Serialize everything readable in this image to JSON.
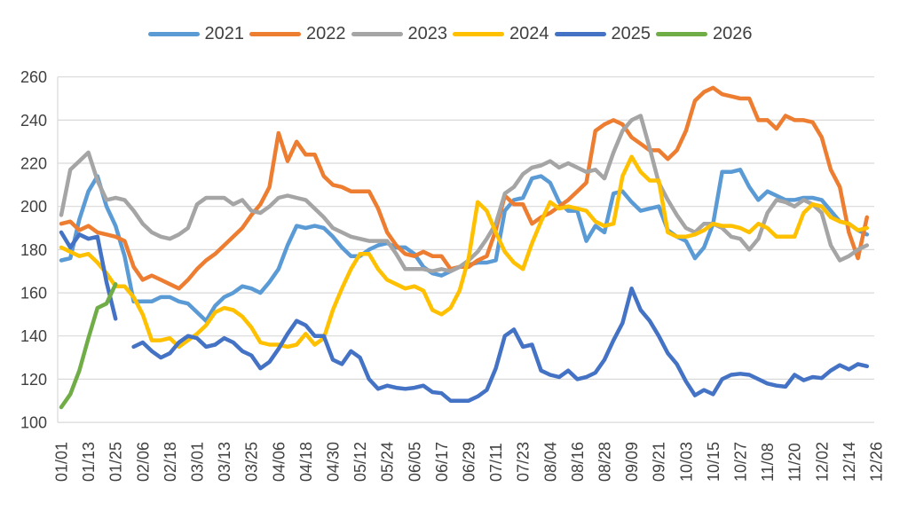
{
  "colors": {
    "background": "#ffffff",
    "grid": "#d9d9d9",
    "axis_text": "#404040",
    "series_2021": "#5B9BD5",
    "series_2022": "#ED7D31",
    "series_2023": "#A5A5A5",
    "series_2024": "#FFC000",
    "series_2025": "#4472C4",
    "series_2026": "#70AD47"
  },
  "legend": {
    "position": "top",
    "items": [
      {
        "label": "2021",
        "color": "#5B9BD5"
      },
      {
        "label": "2022",
        "color": "#ED7D31"
      },
      {
        "label": "2023",
        "color": "#A5A5A5"
      },
      {
        "label": "2024",
        "color": "#FFC000"
      },
      {
        "label": "2025",
        "color": "#4472C4"
      },
      {
        "label": "2026",
        "color": "#70AD47"
      }
    ]
  },
  "chart_data": {
    "type": "line",
    "title": "",
    "xlabel": "",
    "ylabel": "",
    "grid": true,
    "legend_position": "top",
    "ylim": [
      100,
      260
    ],
    "y_ticks": [
      100,
      120,
      140,
      160,
      180,
      200,
      220,
      240,
      260
    ],
    "x_tick_labels": [
      "01/01",
      "01/13",
      "01/25",
      "02/06",
      "02/18",
      "03/01",
      "03/13",
      "03/25",
      "04/06",
      "04/18",
      "04/30",
      "05/12",
      "05/24",
      "06/05",
      "06/17",
      "06/29",
      "07/11",
      "07/23",
      "08/04",
      "08/16",
      "08/28",
      "09/09",
      "09/21",
      "10/03",
      "10/15",
      "10/27",
      "11/08",
      "11/20",
      "12/02",
      "12/14",
      "12/26"
    ],
    "x_tick_days": [
      1,
      13,
      25,
      37,
      49,
      61,
      73,
      85,
      97,
      109,
      121,
      133,
      145,
      157,
      169,
      181,
      193,
      205,
      217,
      229,
      241,
      253,
      265,
      277,
      289,
      301,
      313,
      325,
      337,
      349,
      361
    ],
    "x_unit": "day-of-year (MM/DD)",
    "sample_days": [
      1,
      5,
      9,
      13,
      17,
      21,
      25,
      29,
      33,
      37,
      41,
      45,
      49,
      53,
      57,
      61,
      65,
      69,
      73,
      77,
      81,
      85,
      89,
      93,
      97,
      101,
      105,
      109,
      113,
      117,
      121,
      125,
      129,
      133,
      137,
      141,
      145,
      149,
      153,
      157,
      161,
      165,
      169,
      173,
      177,
      181,
      185,
      189,
      193,
      197,
      201,
      205,
      209,
      213,
      217,
      221,
      225,
      229,
      233,
      237,
      241,
      245,
      249,
      253,
      257,
      261,
      265,
      269,
      273,
      277,
      281,
      285,
      289,
      293,
      297,
      301,
      305,
      309,
      313,
      317,
      321,
      325,
      329,
      333,
      337,
      341,
      345,
      349,
      353,
      357
    ],
    "series": [
      {
        "name": "2021",
        "color": "#5B9BD5",
        "values": [
          175,
          176,
          194,
          207,
          214,
          200,
          191,
          177,
          156,
          156,
          156,
          158,
          158,
          156,
          155,
          151,
          147,
          154,
          158,
          160,
          163,
          162,
          160,
          165,
          171,
          182,
          191,
          190,
          191,
          190,
          186,
          181,
          177,
          177,
          180,
          182,
          183,
          181,
          181,
          178,
          172,
          169,
          168,
          170,
          172,
          173,
          174,
          174,
          175,
          198,
          203,
          204,
          213,
          214,
          211,
          202,
          198,
          198,
          184,
          191,
          188,
          206,
          207,
          202,
          198,
          199,
          200,
          189,
          186,
          184,
          176,
          181,
          192,
          216,
          216,
          217,
          209,
          203,
          207,
          205,
          203,
          203,
          204,
          204,
          203,
          198,
          193,
          192,
          189,
          187
        ]
      },
      {
        "name": "2022",
        "color": "#ED7D31",
        "values": [
          192,
          193,
          189,
          191,
          188,
          187,
          186,
          184,
          172,
          166,
          168,
          166,
          164,
          162,
          166,
          171,
          175,
          178,
          182,
          186,
          190,
          196,
          201,
          209,
          234,
          221,
          230,
          224,
          224,
          214,
          210,
          209,
          207,
          207,
          207,
          199,
          188,
          182,
          178,
          177,
          179,
          177,
          177,
          171,
          172,
          172,
          175,
          177,
          189,
          205,
          201,
          201,
          192,
          195,
          197,
          200,
          203,
          207,
          211,
          235,
          238,
          240,
          238,
          232,
          229,
          226,
          226,
          222,
          226,
          235,
          249,
          253,
          255,
          252,
          251,
          250,
          250,
          240,
          240,
          236,
          242,
          240,
          240,
          239,
          232,
          217,
          209,
          188,
          176,
          195
        ]
      },
      {
        "name": "2023",
        "color": "#A5A5A5",
        "values": [
          196,
          217,
          221,
          225,
          212,
          203,
          204,
          203,
          198,
          192,
          188,
          186,
          185,
          187,
          190,
          201,
          204,
          204,
          204,
          201,
          203,
          198,
          197,
          200,
          204,
          205,
          204,
          203,
          199,
          195,
          190,
          188,
          186,
          185,
          184,
          184,
          184,
          178,
          171,
          171,
          171,
          170,
          171,
          170,
          172,
          175,
          179,
          185,
          192,
          206,
          209,
          215,
          218,
          219,
          221,
          218,
          220,
          218,
          216,
          217,
          213,
          225,
          235,
          240,
          242,
          227,
          211,
          203,
          196,
          190,
          188,
          192,
          192,
          190,
          186,
          185,
          180,
          185,
          197,
          203,
          202,
          200,
          203,
          201,
          197,
          182,
          175,
          177,
          180,
          182
        ]
      },
      {
        "name": "2024",
        "color": "#FFC000",
        "values": [
          181,
          179,
          177,
          178,
          174,
          169,
          163,
          163,
          158,
          150,
          138,
          138,
          139,
          135,
          138,
          141,
          145,
          151,
          153,
          152,
          149,
          144,
          137,
          136,
          136,
          135,
          136,
          141,
          136,
          139,
          152,
          162,
          171,
          178,
          178,
          171,
          166,
          164,
          162,
          163,
          161,
          152,
          150,
          153,
          161,
          176,
          202,
          198,
          188,
          179,
          174,
          171,
          183,
          193,
          202,
          199,
          200,
          199,
          198,
          193,
          191,
          192,
          214,
          223,
          216,
          212,
          212,
          188,
          186,
          186,
          187,
          189,
          192,
          191,
          191,
          190,
          188,
          192,
          190,
          186,
          186,
          186,
          197,
          201,
          200,
          195,
          193,
          192,
          189,
          190
        ]
      },
      {
        "name": "2025",
        "color": "#4472C4",
        "values": [
          188,
          181,
          187,
          185,
          186,
          165,
          148,
          null,
          135,
          137,
          133,
          130,
          132,
          137,
          140,
          139,
          135,
          136,
          139,
          137,
          133,
          131,
          125,
          128,
          134,
          141,
          147,
          145,
          140,
          140,
          129,
          127,
          133,
          130,
          120,
          115.5,
          117,
          116,
          115.5,
          116,
          117,
          114,
          113.5,
          110,
          110,
          110,
          112,
          115,
          125,
          140,
          143,
          135,
          136,
          124,
          122,
          121,
          124,
          120,
          121,
          123,
          129,
          138,
          146,
          162,
          152,
          147,
          140,
          132,
          127,
          119,
          112.5,
          115,
          113,
          120,
          122,
          122.5,
          122,
          120,
          118,
          117,
          116.5,
          122,
          119.5,
          121,
          120.5,
          124,
          126.5,
          124.5,
          127,
          126
        ]
      },
      {
        "name": "2026",
        "color": "#70AD47",
        "values": [
          107,
          113,
          124,
          139,
          153,
          155,
          164
        ]
      }
    ]
  }
}
